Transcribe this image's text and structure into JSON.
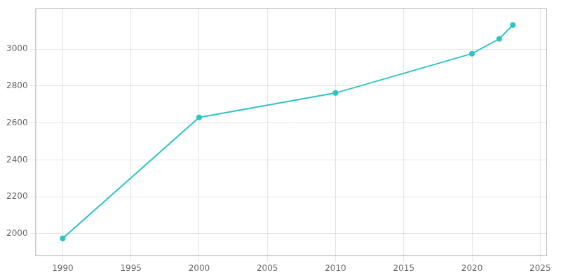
{
  "chart_data": {
    "type": "line",
    "x": [
      1990,
      2000,
      2010,
      2020,
      2022,
      2023
    ],
    "values": [
      1975,
      2630,
      2762,
      2975,
      3055,
      3130
    ],
    "color": "#2EC4C4",
    "marker": "circle",
    "xlim": [
      1988,
      2025.5
    ],
    "xticks": [
      1990,
      1995,
      2000,
      2005,
      2010,
      2015,
      2020,
      2025
    ],
    "ylim": [
      1880,
      3220
    ],
    "yticks": [
      2000,
      2200,
      2400,
      2600,
      2800,
      3000
    ],
    "grid": true
  }
}
